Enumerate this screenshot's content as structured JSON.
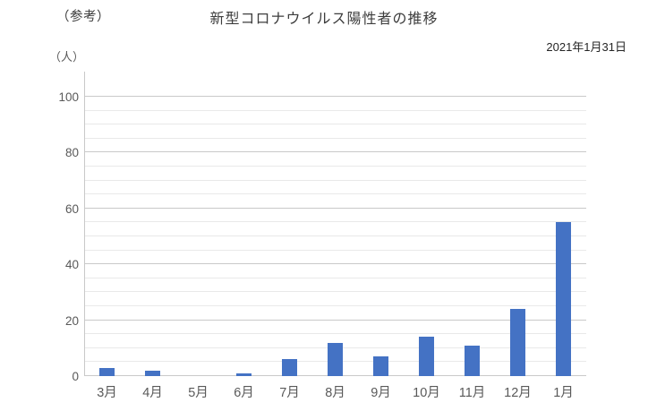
{
  "page": {
    "corner_note": "（参考）",
    "title": "新型コロナウイルス陽性者の推移",
    "date": "2021年1月31日",
    "unit_label": "（人）"
  },
  "chart_data": {
    "type": "bar",
    "title": "新型コロナウイルス陽性者の推移",
    "subtitle": "2021年1月31日",
    "categories": [
      "3月",
      "4月",
      "5月",
      "6月",
      "7月",
      "8月",
      "9月",
      "10月",
      "11月",
      "12月",
      "1月"
    ],
    "values": [
      3,
      2,
      0,
      1,
      6,
      12,
      7,
      14,
      11,
      24,
      55
    ],
    "xlabel": "",
    "ylabel": "（人）",
    "ylim": [
      0,
      100
    ],
    "y_major_ticks": [
      0,
      20,
      40,
      60,
      80,
      100
    ],
    "y_minor_interval": 5,
    "grid": true,
    "legend_position": "none",
    "bar_color": "#4472C4",
    "major_grid_color": "#c9c9c9",
    "minor_grid_color": "#e9e9e9",
    "axis_text_color": "#595959"
  }
}
